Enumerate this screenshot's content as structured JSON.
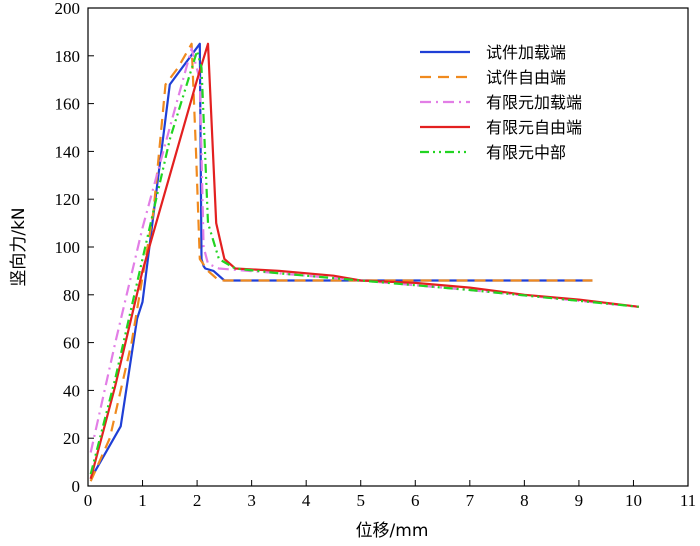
{
  "chart_data": {
    "type": "line",
    "title": "",
    "xlabel": "位移/mm",
    "ylabel": "竖向力/kN",
    "xlim": [
      0,
      11
    ],
    "ylim": [
      0,
      200
    ],
    "xticks": [
      "0",
      "1",
      "2",
      "3",
      "4",
      "5",
      "6",
      "7",
      "8",
      "9",
      "10",
      "11"
    ],
    "yticks": [
      "0",
      "20",
      "40",
      "60",
      "80",
      "100",
      "120",
      "140",
      "160",
      "180",
      "200"
    ],
    "grid": false,
    "legend_position": "top-right",
    "series": [
      {
        "name": "试件加载端",
        "color": "#1f3fd6",
        "dash": "solid",
        "x": [
          0.05,
          0.6,
          0.9,
          1.0,
          1.5,
          2.05,
          2.08,
          2.12,
          2.15,
          2.3,
          2.5,
          9.25
        ],
        "y": [
          3,
          25,
          70,
          77,
          168,
          185,
          95,
          92,
          91,
          90,
          86,
          86
        ]
      },
      {
        "name": "试件自由端",
        "color": "#f08a1e",
        "dash": "dashed",
        "x": [
          0.05,
          0.4,
          0.8,
          1.2,
          1.42,
          1.65,
          1.9,
          1.98,
          2.05,
          2.2,
          2.4,
          9.25
        ],
        "y": [
          2,
          20,
          60,
          115,
          168,
          175,
          185,
          140,
          95,
          90,
          86,
          86
        ]
      },
      {
        "name": "有限元加载端",
        "color": "#e27ee6",
        "dash": "dashdot",
        "x": [
          0.05,
          0.5,
          1.0,
          1.5,
          1.9,
          2.05,
          2.12,
          2.2,
          2.4,
          3.5,
          5.0,
          7.0,
          10.1
        ],
        "y": [
          14,
          60,
          108,
          150,
          183,
          170,
          100,
          93,
          91,
          89,
          86,
          82,
          75
        ]
      },
      {
        "name": "有限元自由端",
        "color": "#e32020",
        "dash": "solid",
        "x": [
          0.05,
          0.5,
          1.0,
          1.5,
          2.0,
          2.2,
          2.35,
          2.5,
          2.7,
          3.5,
          4.5,
          5.0,
          6.0,
          7.0,
          8.0,
          9.0,
          10.1
        ],
        "y": [
          3,
          42,
          90,
          130,
          170,
          185,
          110,
          95,
          91,
          90,
          88,
          86,
          85,
          83,
          80,
          78,
          75
        ]
      },
      {
        "name": "有限元中部",
        "color": "#22d422",
        "dash": "dashdotdot",
        "x": [
          0.05,
          0.5,
          1.0,
          1.5,
          2.0,
          2.08,
          2.2,
          2.4,
          2.7,
          3.5,
          5.0,
          7.0,
          10.1
        ],
        "y": [
          5,
          45,
          95,
          145,
          182,
          175,
          110,
          95,
          91,
          89,
          86,
          82,
          75
        ]
      }
    ]
  }
}
